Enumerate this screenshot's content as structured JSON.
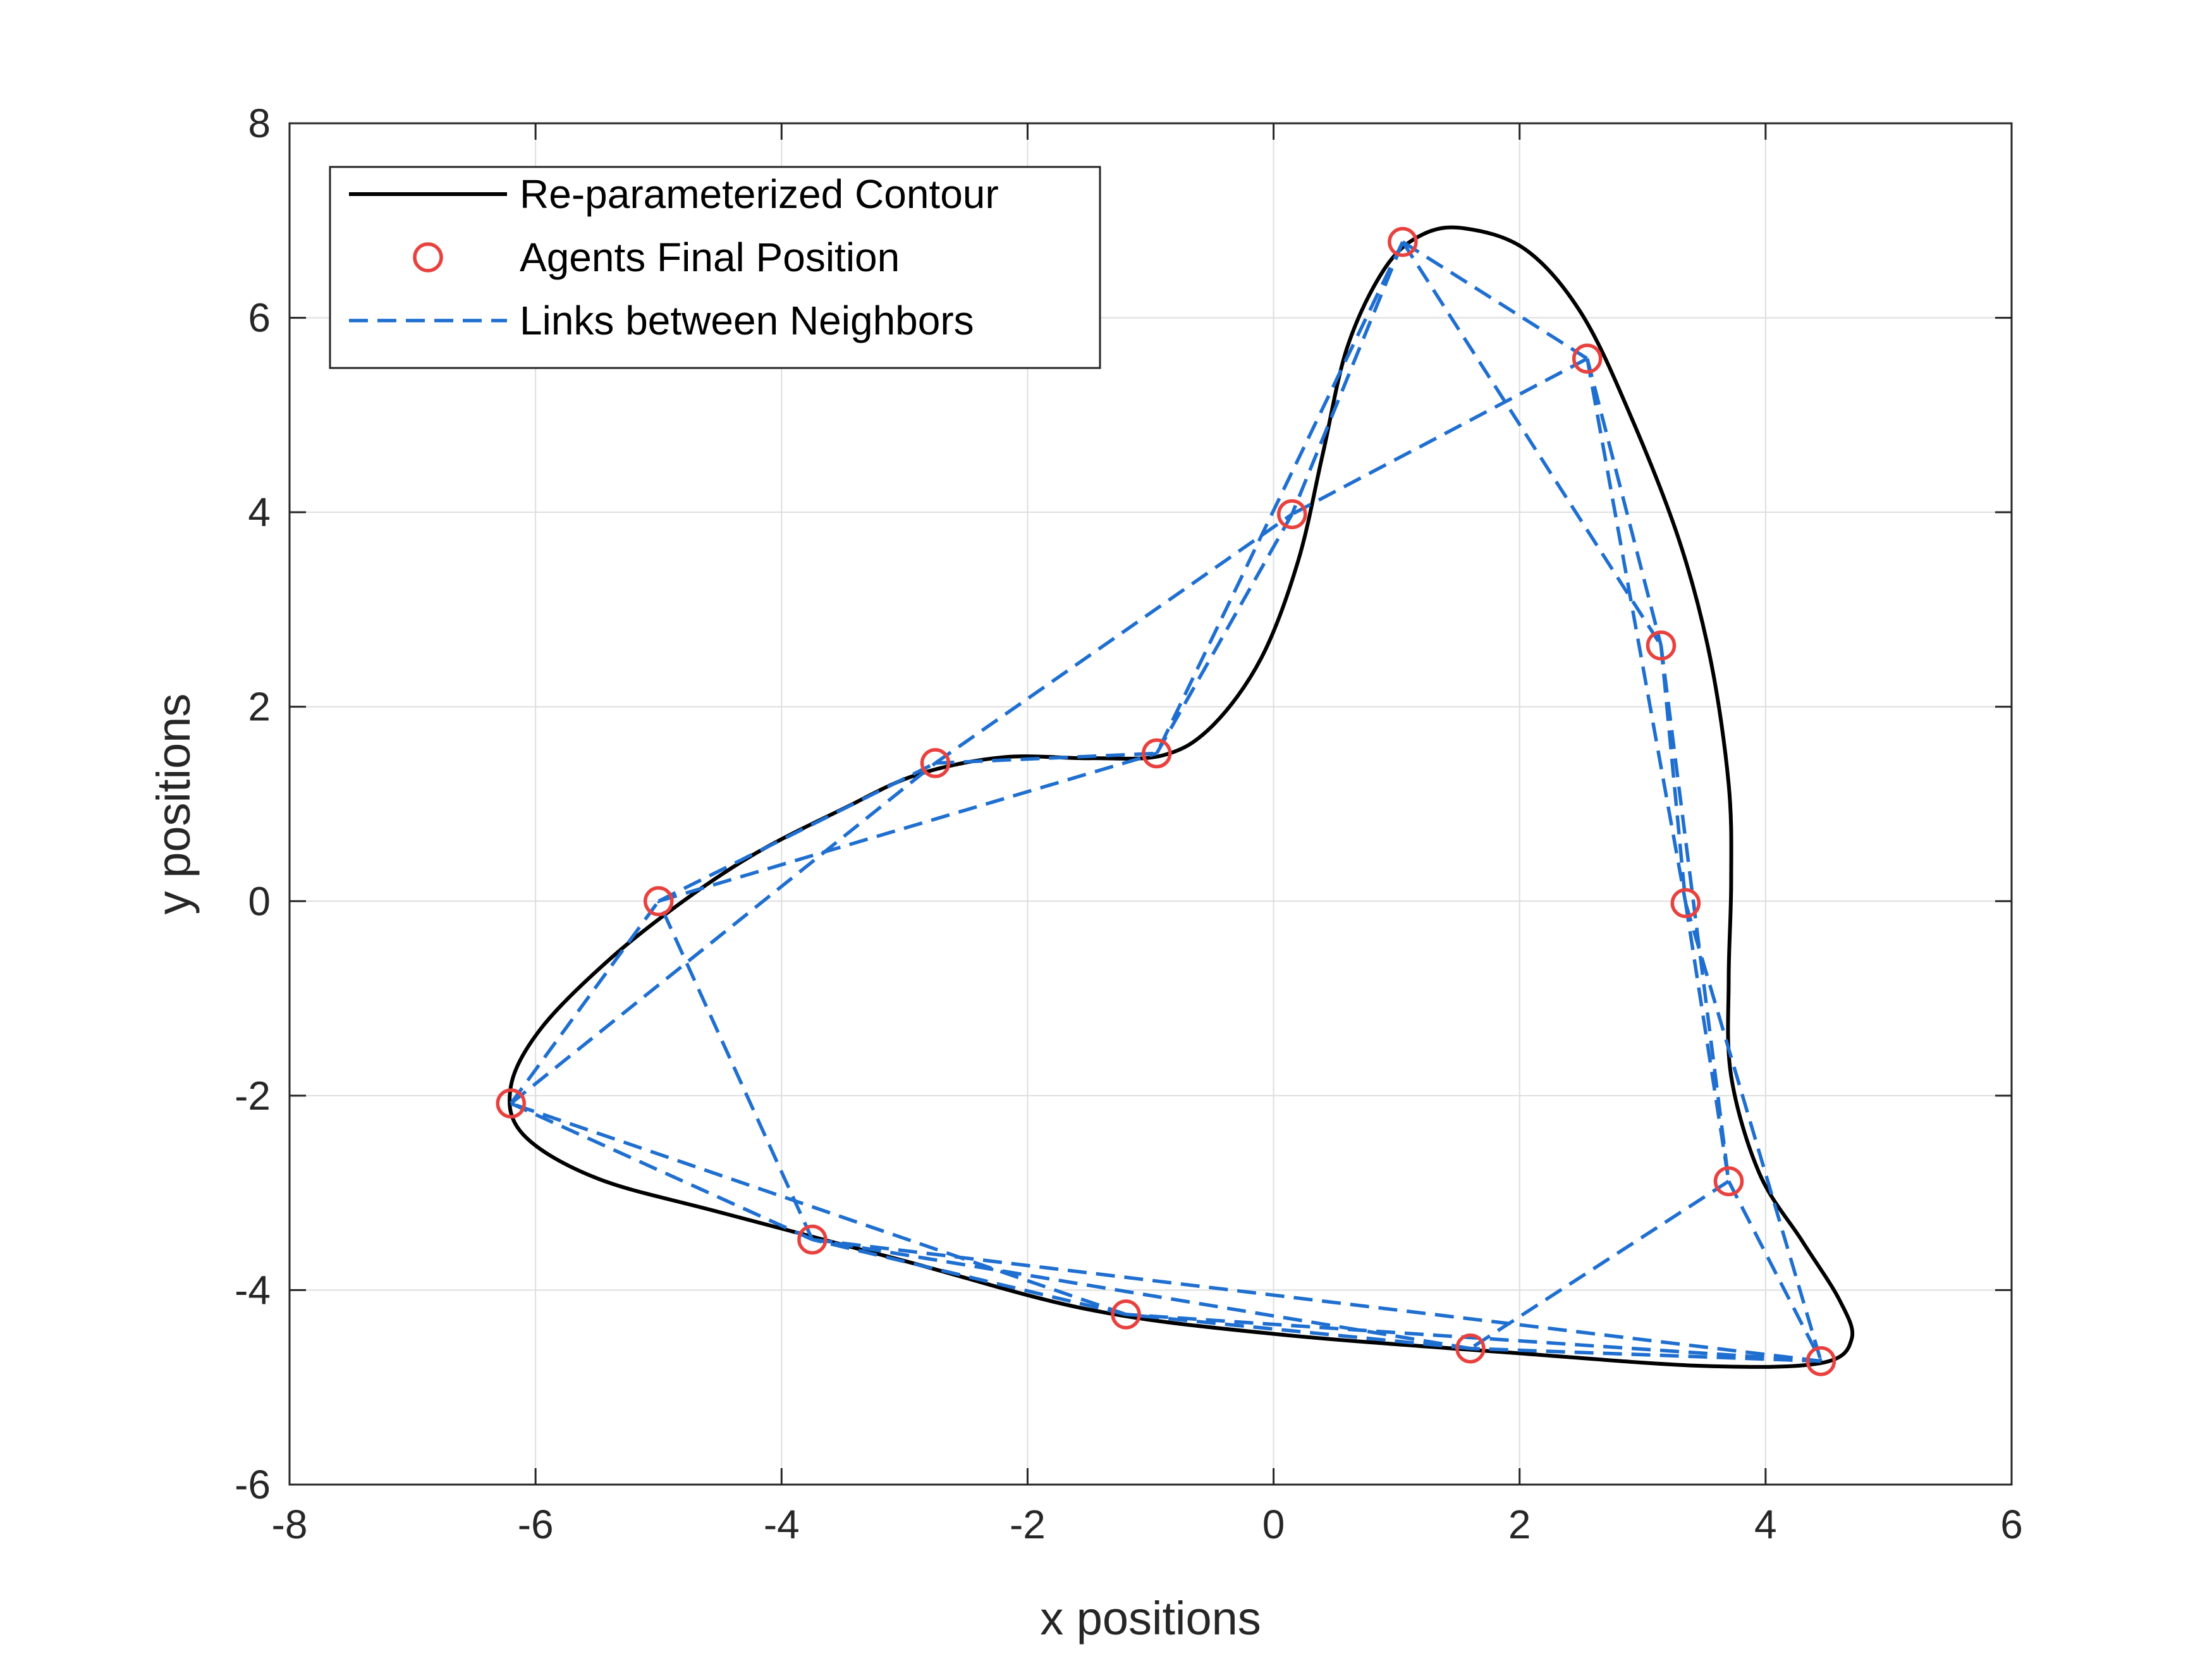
{
  "chart_data": {
    "type": "line",
    "title": "",
    "xlabel": "x positions",
    "ylabel": "y positions",
    "xlim": [
      -8,
      6
    ],
    "ylim": [
      -6,
      8
    ],
    "xticks": [
      -8,
      -6,
      -4,
      -2,
      0,
      2,
      4,
      6
    ],
    "yticks": [
      -6,
      -4,
      -2,
      0,
      2,
      4,
      6,
      8
    ],
    "xtick_labels": [
      "-8",
      "-6",
      "-4",
      "-2",
      "0",
      "2",
      "4",
      "6"
    ],
    "ytick_labels": [
      "-6",
      "-4",
      "-2",
      "0",
      "2",
      "4",
      "6",
      "8"
    ],
    "grid": true,
    "legend_position": "top-left",
    "colors": {
      "contour": "#000000",
      "agents": "#e8413e",
      "links": "#1f6fd1",
      "grid": "#dedede",
      "axes": "#262626"
    },
    "series": [
      {
        "name": "Re-parameterized Contour",
        "style": "solid",
        "closed": true,
        "points": [
          [
            1.55,
            6.92
          ],
          [
            2.05,
            6.7
          ],
          [
            2.5,
            6.05
          ],
          [
            2.9,
            5.0
          ],
          [
            3.3,
            3.7
          ],
          [
            3.55,
            2.5
          ],
          [
            3.7,
            1.2
          ],
          [
            3.72,
            0.2
          ],
          [
            3.7,
            -0.8
          ],
          [
            3.72,
            -1.8
          ],
          [
            3.95,
            -2.8
          ],
          [
            4.3,
            -3.5
          ],
          [
            4.6,
            -4.1
          ],
          [
            4.7,
            -4.5
          ],
          [
            4.45,
            -4.75
          ],
          [
            3.5,
            -4.78
          ],
          [
            2.0,
            -4.65
          ],
          [
            0.0,
            -4.45
          ],
          [
            -1.5,
            -4.2
          ],
          [
            -3.0,
            -3.7
          ],
          [
            -4.5,
            -3.2
          ],
          [
            -5.5,
            -2.85
          ],
          [
            -6.1,
            -2.4
          ],
          [
            -6.2,
            -1.9
          ],
          [
            -5.95,
            -1.3
          ],
          [
            -5.4,
            -0.6
          ],
          [
            -4.8,
            0.0
          ],
          [
            -4.2,
            0.5
          ],
          [
            -3.5,
            0.95
          ],
          [
            -2.9,
            1.3
          ],
          [
            -2.2,
            1.48
          ],
          [
            -1.5,
            1.47
          ],
          [
            -0.9,
            1.5
          ],
          [
            -0.5,
            1.8
          ],
          [
            -0.1,
            2.5
          ],
          [
            0.2,
            3.5
          ],
          [
            0.4,
            4.6
          ],
          [
            0.6,
            5.7
          ],
          [
            0.9,
            6.5
          ],
          [
            1.2,
            6.85
          ]
        ]
      },
      {
        "name": "Agents Final Position",
        "style": "markers",
        "points": [
          [
            1.05,
            6.78
          ],
          [
            2.55,
            5.58
          ],
          [
            3.15,
            2.63
          ],
          [
            3.35,
            -0.02
          ],
          [
            3.7,
            -2.88
          ],
          [
            4.45,
            -4.73
          ],
          [
            1.6,
            -4.6
          ],
          [
            -1.2,
            -4.25
          ],
          [
            -3.75,
            -3.48
          ],
          [
            -6.2,
            -2.08
          ],
          [
            -5.0,
            0.0
          ],
          [
            -2.75,
            1.42
          ],
          [
            -0.95,
            1.52
          ],
          [
            0.15,
            3.98
          ]
        ]
      },
      {
        "name": "Links between Neighbors",
        "style": "dashed",
        "links": [
          [
            0,
            1
          ],
          [
            0,
            13
          ],
          [
            0,
            12
          ],
          [
            0,
            2
          ],
          [
            1,
            2
          ],
          [
            1,
            3
          ],
          [
            1,
            13
          ],
          [
            2,
            3
          ],
          [
            2,
            4
          ],
          [
            3,
            4
          ],
          [
            3,
            5
          ],
          [
            4,
            5
          ],
          [
            4,
            6
          ],
          [
            5,
            6
          ],
          [
            5,
            7
          ],
          [
            5,
            8
          ],
          [
            6,
            7
          ],
          [
            6,
            8
          ],
          [
            7,
            8
          ],
          [
            7,
            9
          ],
          [
            8,
            9
          ],
          [
            8,
            10
          ],
          [
            9,
            10
          ],
          [
            9,
            11
          ],
          [
            10,
            11
          ],
          [
            10,
            12
          ],
          [
            11,
            12
          ],
          [
            11,
            13
          ],
          [
            12,
            13
          ]
        ]
      }
    ]
  }
}
